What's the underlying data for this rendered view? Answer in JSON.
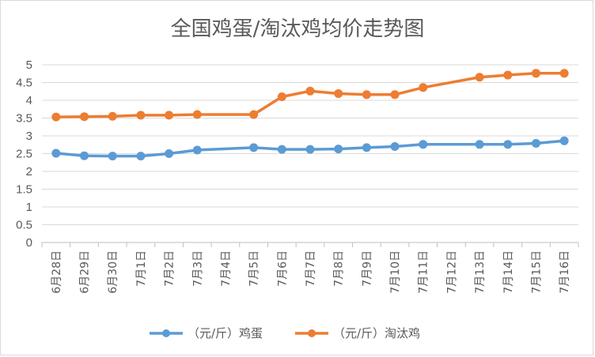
{
  "chart_data": {
    "type": "line",
    "title": "全国鸡蛋/淘汰鸡均价走势图",
    "categories": [
      "6月28日",
      "6月29日",
      "6月30日",
      "7月1日",
      "7月2日",
      "7月3日",
      "7月4日",
      "7月5日",
      "7月6日",
      "7月7日",
      "7月8日",
      "7月9日",
      "7月10日",
      "7月11日",
      "7月12日",
      "7月13日",
      "7月14日",
      "7月15日",
      "7月16日"
    ],
    "series": [
      {
        "name": "（元/斤）鸡蛋",
        "color": "#5b9bd5",
        "values": [
          2.51,
          2.44,
          2.43,
          2.43,
          2.5,
          2.6,
          null,
          2.67,
          2.62,
          2.62,
          2.63,
          2.67,
          2.7,
          2.76,
          null,
          2.76,
          2.76,
          2.79,
          2.86
        ]
      },
      {
        "name": "（元/斤）淘汰鸡",
        "color": "#ed7d31",
        "values": [
          3.53,
          3.54,
          3.55,
          3.58,
          3.58,
          3.6,
          null,
          3.6,
          4.1,
          4.26,
          4.19,
          4.16,
          4.16,
          4.36,
          null,
          4.65,
          4.71,
          4.76,
          4.76
        ]
      }
    ],
    "ylim": [
      0,
      5
    ],
    "yticks": [
      "0",
      "0.5",
      "1",
      "1.5",
      "2",
      "2.5",
      "3",
      "3.5",
      "4",
      "4.5",
      "5"
    ],
    "grid": true,
    "legend_position": "bottom"
  }
}
